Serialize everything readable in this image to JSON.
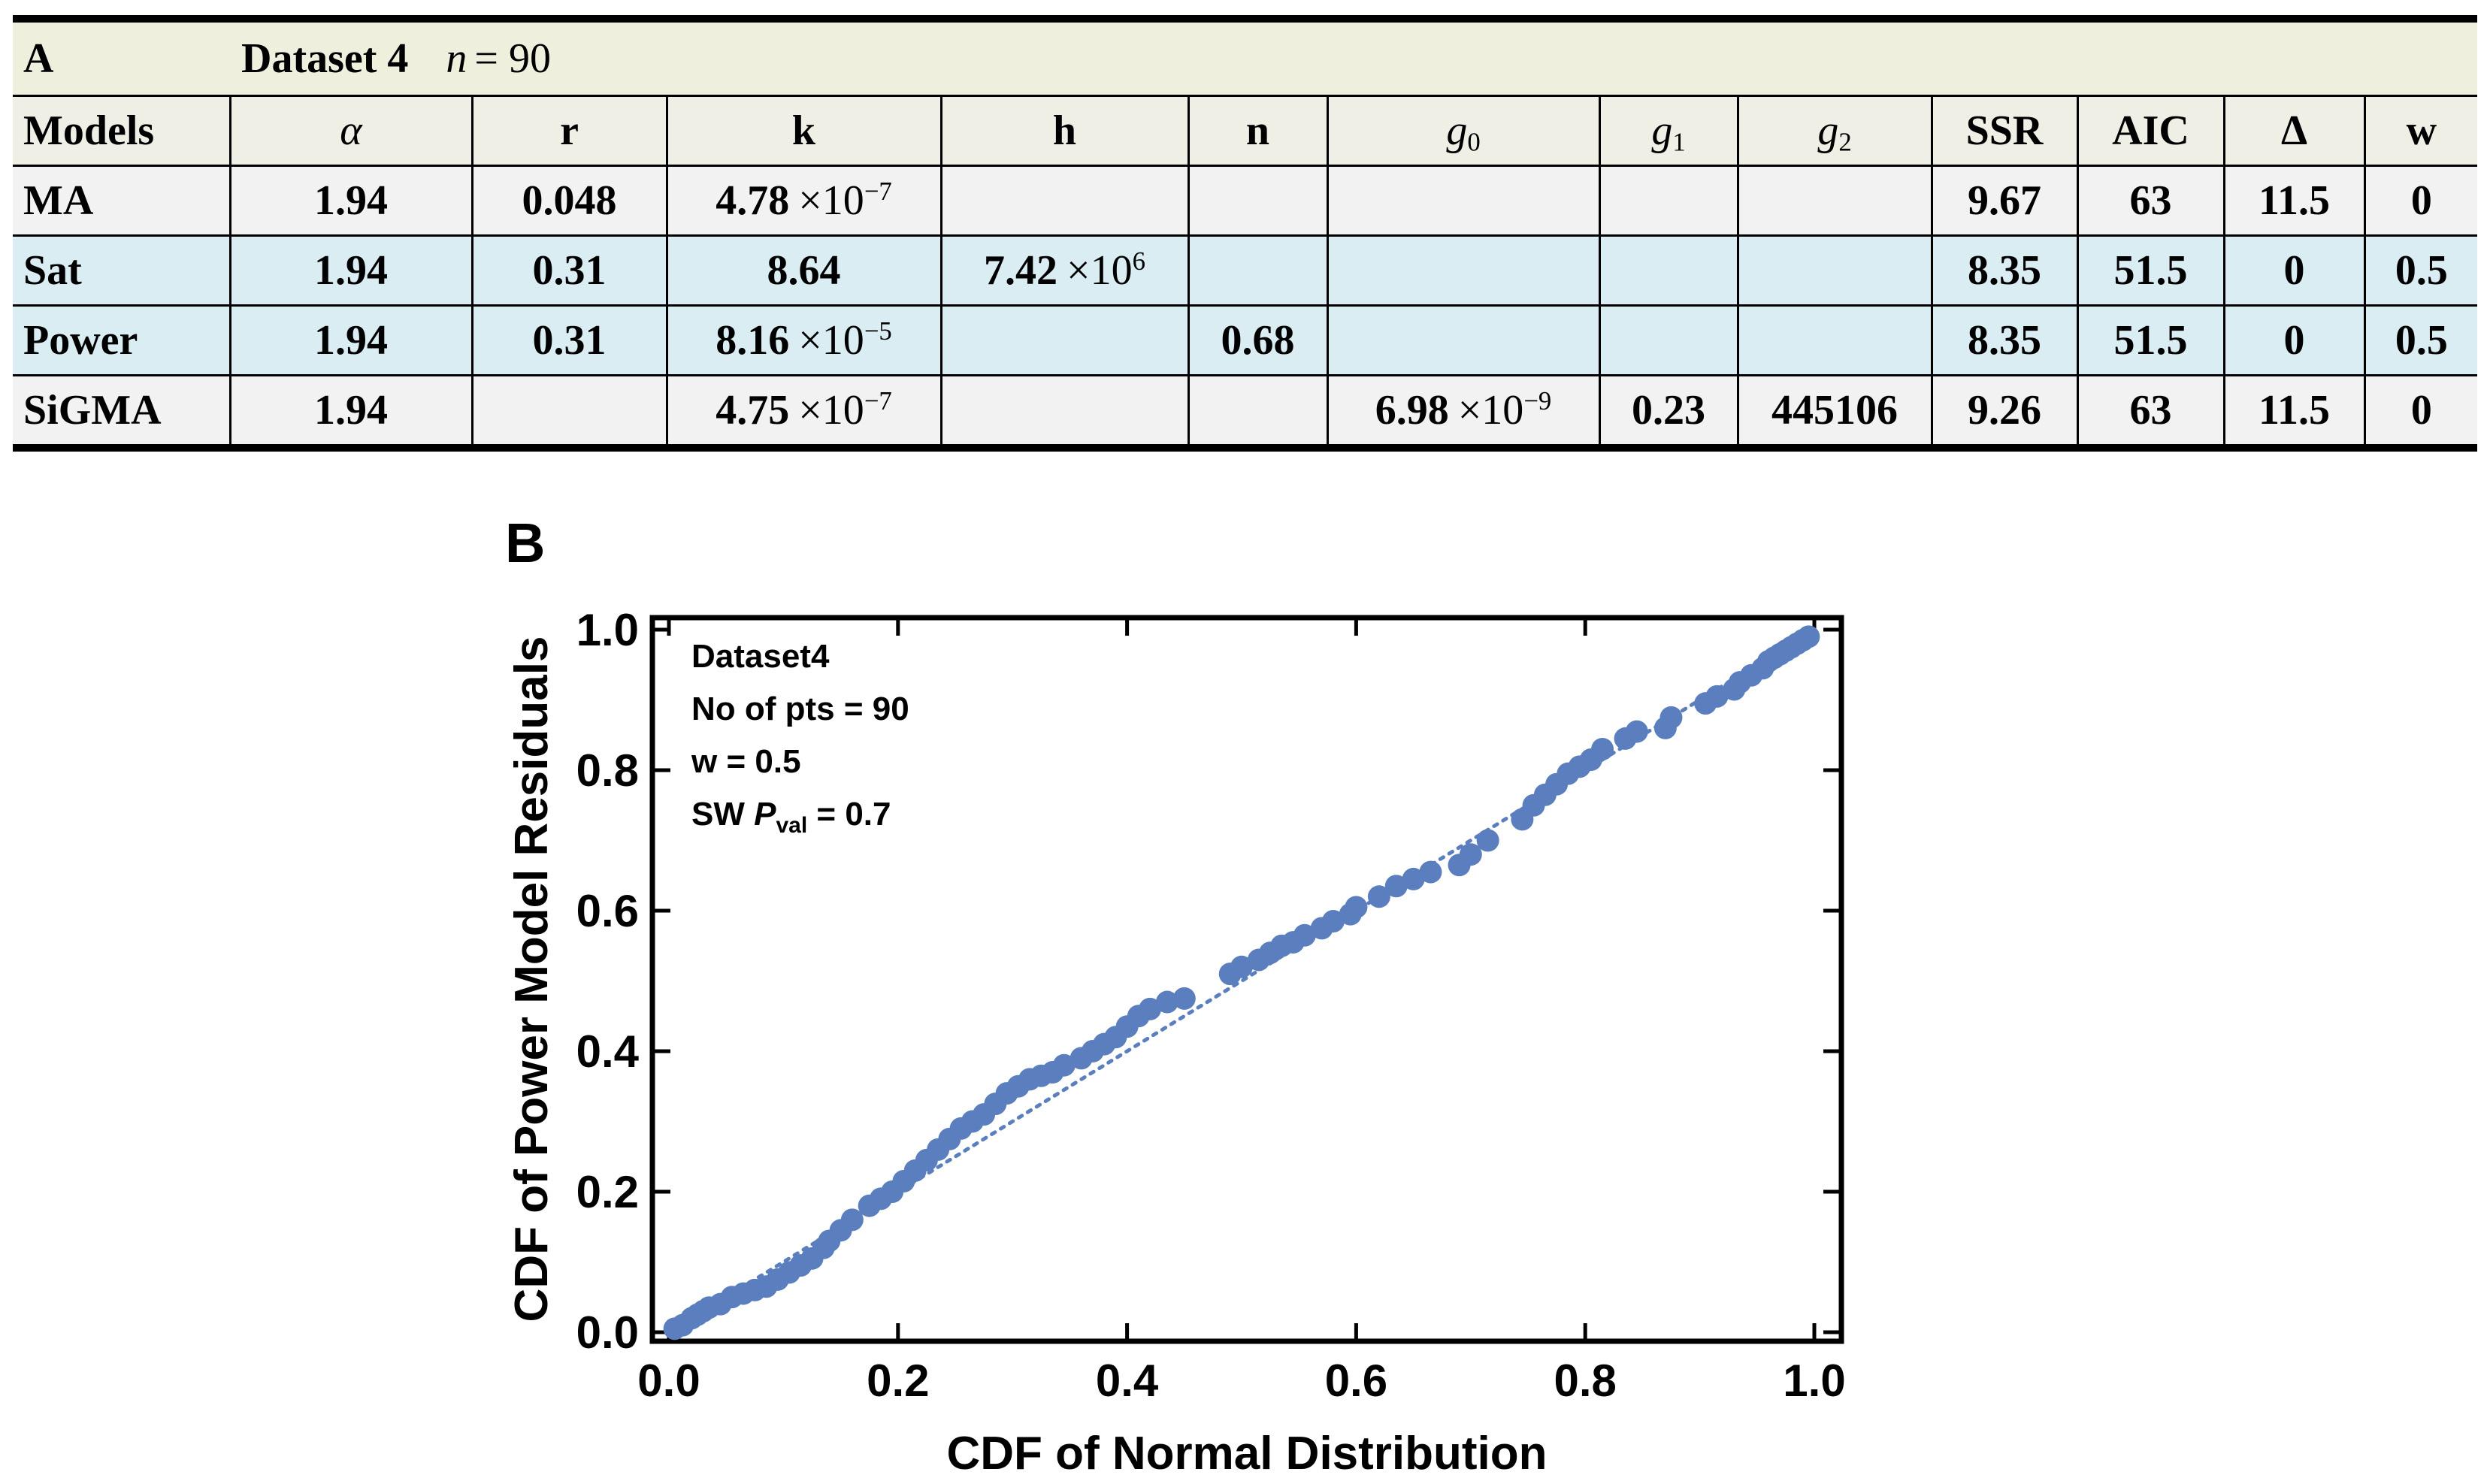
{
  "panel_a": {
    "label": "A",
    "dataset": "Dataset 4",
    "n_symbol": "n",
    "n_equals": "= 90",
    "headers": [
      {
        "text": "Models",
        "style": "bold"
      },
      {
        "text": "α",
        "style": "math"
      },
      {
        "text": "r",
        "style": "bold"
      },
      {
        "text": "k",
        "style": "bold"
      },
      {
        "text": "h",
        "style": "bold"
      },
      {
        "text": "n",
        "style": "bold"
      },
      {
        "base": "g",
        "sub": "0",
        "style": "math-sub"
      },
      {
        "base": "g",
        "sub": "1",
        "style": "math-sub"
      },
      {
        "base": "g",
        "sub": "2",
        "style": "math-sub"
      },
      {
        "text": "SSR",
        "style": "bold"
      },
      {
        "text": "AIC",
        "style": "bold"
      },
      {
        "text": "Δ",
        "style": "bold"
      },
      {
        "text": "w",
        "style": "bold"
      }
    ],
    "rows": [
      {
        "shade": "grey",
        "cells": [
          {
            "text": "MA"
          },
          {
            "text": "1.94"
          },
          {
            "text": "0.048"
          },
          {
            "mant": "4.78",
            "times": "×10",
            "exp": "−7"
          },
          {
            "text": ""
          },
          {
            "text": ""
          },
          {
            "text": ""
          },
          {
            "text": ""
          },
          {
            "text": ""
          },
          {
            "text": "9.67"
          },
          {
            "text": "63"
          },
          {
            "text": "11.5"
          },
          {
            "text": "0"
          }
        ]
      },
      {
        "shade": "blue",
        "cells": [
          {
            "text": "Sat"
          },
          {
            "text": "1.94"
          },
          {
            "text": "0.31"
          },
          {
            "text": "8.64"
          },
          {
            "mant": "7.42",
            "times": "×10",
            "exp": "6"
          },
          {
            "text": ""
          },
          {
            "text": ""
          },
          {
            "text": ""
          },
          {
            "text": ""
          },
          {
            "text": "8.35"
          },
          {
            "text": "51.5"
          },
          {
            "text": "0"
          },
          {
            "text": "0.5"
          }
        ]
      },
      {
        "shade": "blue",
        "cells": [
          {
            "text": "Power"
          },
          {
            "text": "1.94"
          },
          {
            "text": "0.31"
          },
          {
            "mant": "8.16",
            "times": "×10",
            "exp": "−5"
          },
          {
            "text": ""
          },
          {
            "text": "0.68"
          },
          {
            "text": ""
          },
          {
            "text": ""
          },
          {
            "text": ""
          },
          {
            "text": "8.35"
          },
          {
            "text": "51.5"
          },
          {
            "text": "0"
          },
          {
            "text": "0.5"
          }
        ]
      },
      {
        "shade": "grey",
        "cells": [
          {
            "text": "SiGMA"
          },
          {
            "text": "1.94"
          },
          {
            "text": ""
          },
          {
            "mant": "4.75",
            "times": "×10",
            "exp": "−7"
          },
          {
            "text": ""
          },
          {
            "text": ""
          },
          {
            "mant": "6.98",
            "times": "×10",
            "exp": "−9"
          },
          {
            "text": "0.23"
          },
          {
            "text": "445106"
          },
          {
            "text": "9.26"
          },
          {
            "text": "63"
          },
          {
            "text": "11.5"
          },
          {
            "text": "0"
          }
        ]
      }
    ],
    "colors": {
      "title_bg": "#eef0dd",
      "header_bg": "#efefe6",
      "grey_row": "#f2f2f2",
      "blue_row": "#d9edf3"
    }
  },
  "panel_b": {
    "label": "B",
    "legend": {
      "line1": "Dataset4",
      "line2": "No of pts = 90",
      "line3": "w = 0.5",
      "line4_prefix": "SW ",
      "line4_p": "P",
      "line4_sub": "val",
      "line4_suffix": " = 0.7"
    }
  },
  "chart_data": {
    "type": "scatter",
    "title": "",
    "xlabel": "CDF of Normal Distribution",
    "ylabel": "CDF of Power Model Residuals",
    "xlim": [
      0.0,
      1.0
    ],
    "ylim": [
      0.0,
      1.0
    ],
    "x_ticks": [
      "0.0",
      "0.2",
      "0.4",
      "0.6",
      "0.8",
      "1.0"
    ],
    "y_ticks": [
      "0.0",
      "0.2",
      "0.4",
      "0.6",
      "0.8",
      "1.0"
    ],
    "grid": false,
    "point_color": "#5b7fbe",
    "reference_line": {
      "style": "dotted",
      "from": [
        0,
        0
      ],
      "to": [
        1,
        1
      ],
      "color": "#5b7fbe"
    },
    "series": [
      {
        "name": "Power model residuals",
        "x": [
          0.005,
          0.012,
          0.02,
          0.025,
          0.03,
          0.035,
          0.045,
          0.055,
          0.065,
          0.075,
          0.085,
          0.095,
          0.105,
          0.115,
          0.125,
          0.135,
          0.14,
          0.15,
          0.16,
          0.175,
          0.185,
          0.195,
          0.205,
          0.215,
          0.225,
          0.235,
          0.245,
          0.255,
          0.265,
          0.275,
          0.285,
          0.295,
          0.305,
          0.315,
          0.325,
          0.335,
          0.345,
          0.36,
          0.37,
          0.38,
          0.39,
          0.4,
          0.41,
          0.42,
          0.435,
          0.45,
          0.49,
          0.5,
          0.515,
          0.525,
          0.535,
          0.545,
          0.555,
          0.57,
          0.58,
          0.595,
          0.6,
          0.62,
          0.635,
          0.65,
          0.665,
          0.69,
          0.7,
          0.715,
          0.745,
          0.755,
          0.765,
          0.775,
          0.785,
          0.795,
          0.805,
          0.815,
          0.835,
          0.845,
          0.87,
          0.875,
          0.905,
          0.915,
          0.93,
          0.935,
          0.945,
          0.955,
          0.96,
          0.965,
          0.97,
          0.975,
          0.98,
          0.985,
          0.99,
          0.995
        ],
        "y": [
          0.005,
          0.01,
          0.02,
          0.025,
          0.03,
          0.035,
          0.04,
          0.05,
          0.055,
          0.06,
          0.065,
          0.075,
          0.085,
          0.095,
          0.105,
          0.12,
          0.13,
          0.145,
          0.16,
          0.18,
          0.19,
          0.2,
          0.215,
          0.23,
          0.245,
          0.26,
          0.275,
          0.29,
          0.3,
          0.31,
          0.325,
          0.34,
          0.35,
          0.36,
          0.365,
          0.37,
          0.38,
          0.39,
          0.4,
          0.41,
          0.42,
          0.435,
          0.45,
          0.46,
          0.47,
          0.475,
          0.51,
          0.52,
          0.53,
          0.54,
          0.55,
          0.555,
          0.565,
          0.575,
          0.585,
          0.595,
          0.605,
          0.62,
          0.635,
          0.645,
          0.655,
          0.665,
          0.68,
          0.7,
          0.73,
          0.75,
          0.765,
          0.78,
          0.795,
          0.805,
          0.815,
          0.83,
          0.845,
          0.855,
          0.86,
          0.875,
          0.895,
          0.905,
          0.915,
          0.925,
          0.935,
          0.945,
          0.955,
          0.96,
          0.965,
          0.97,
          0.975,
          0.98,
          0.985,
          0.99
        ]
      }
    ]
  }
}
